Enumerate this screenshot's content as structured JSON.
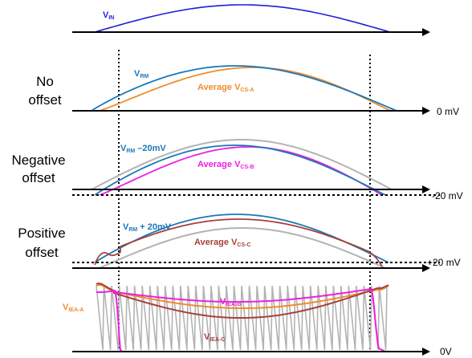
{
  "colors": {
    "vin": "#1f1fd6",
    "vrm": "#1b78b7",
    "avg_a": "#ef8c2e",
    "avg_b": "#ee1fe0",
    "avg_c": "#a8403a",
    "gray": "#b3b3b3",
    "iea_a": "#ef8c2e",
    "iea_b": "#ee1fe0",
    "iea_c": "#a8403a"
  },
  "panels": {
    "vin": {
      "label": "V",
      "sub": "IN"
    },
    "no_offset": {
      "title_line1": "No",
      "title_line2": "offset",
      "ref": "0 mV",
      "vrm_label": "V",
      "vrm_sub": "RM",
      "avg_label": "Average V",
      "avg_sub": "CS-A"
    },
    "negative_offset": {
      "title_line1": "Negative",
      "title_line2": "offset",
      "ref": "-20 mV",
      "vrm_label": "V",
      "vrm_sub": "RM",
      "vrm_suffix": " –20mV",
      "avg_label": "Average V",
      "avg_sub": "CS-B"
    },
    "positive_offset": {
      "title_line1": "Positive",
      "title_line2": "offset",
      "ref": "+20 mV",
      "vrm_label": "V",
      "vrm_sub": "RM",
      "vrm_suffix": " + 20mV",
      "avg_label": "Average V",
      "avg_sub": "CS-C"
    },
    "iea": {
      "ref": "0V",
      "a_label": "V",
      "a_sub": "IEA-A",
      "b_label": "V",
      "b_sub": "IEA-B",
      "c_label": "V",
      "c_sub": "IEA-C"
    }
  }
}
